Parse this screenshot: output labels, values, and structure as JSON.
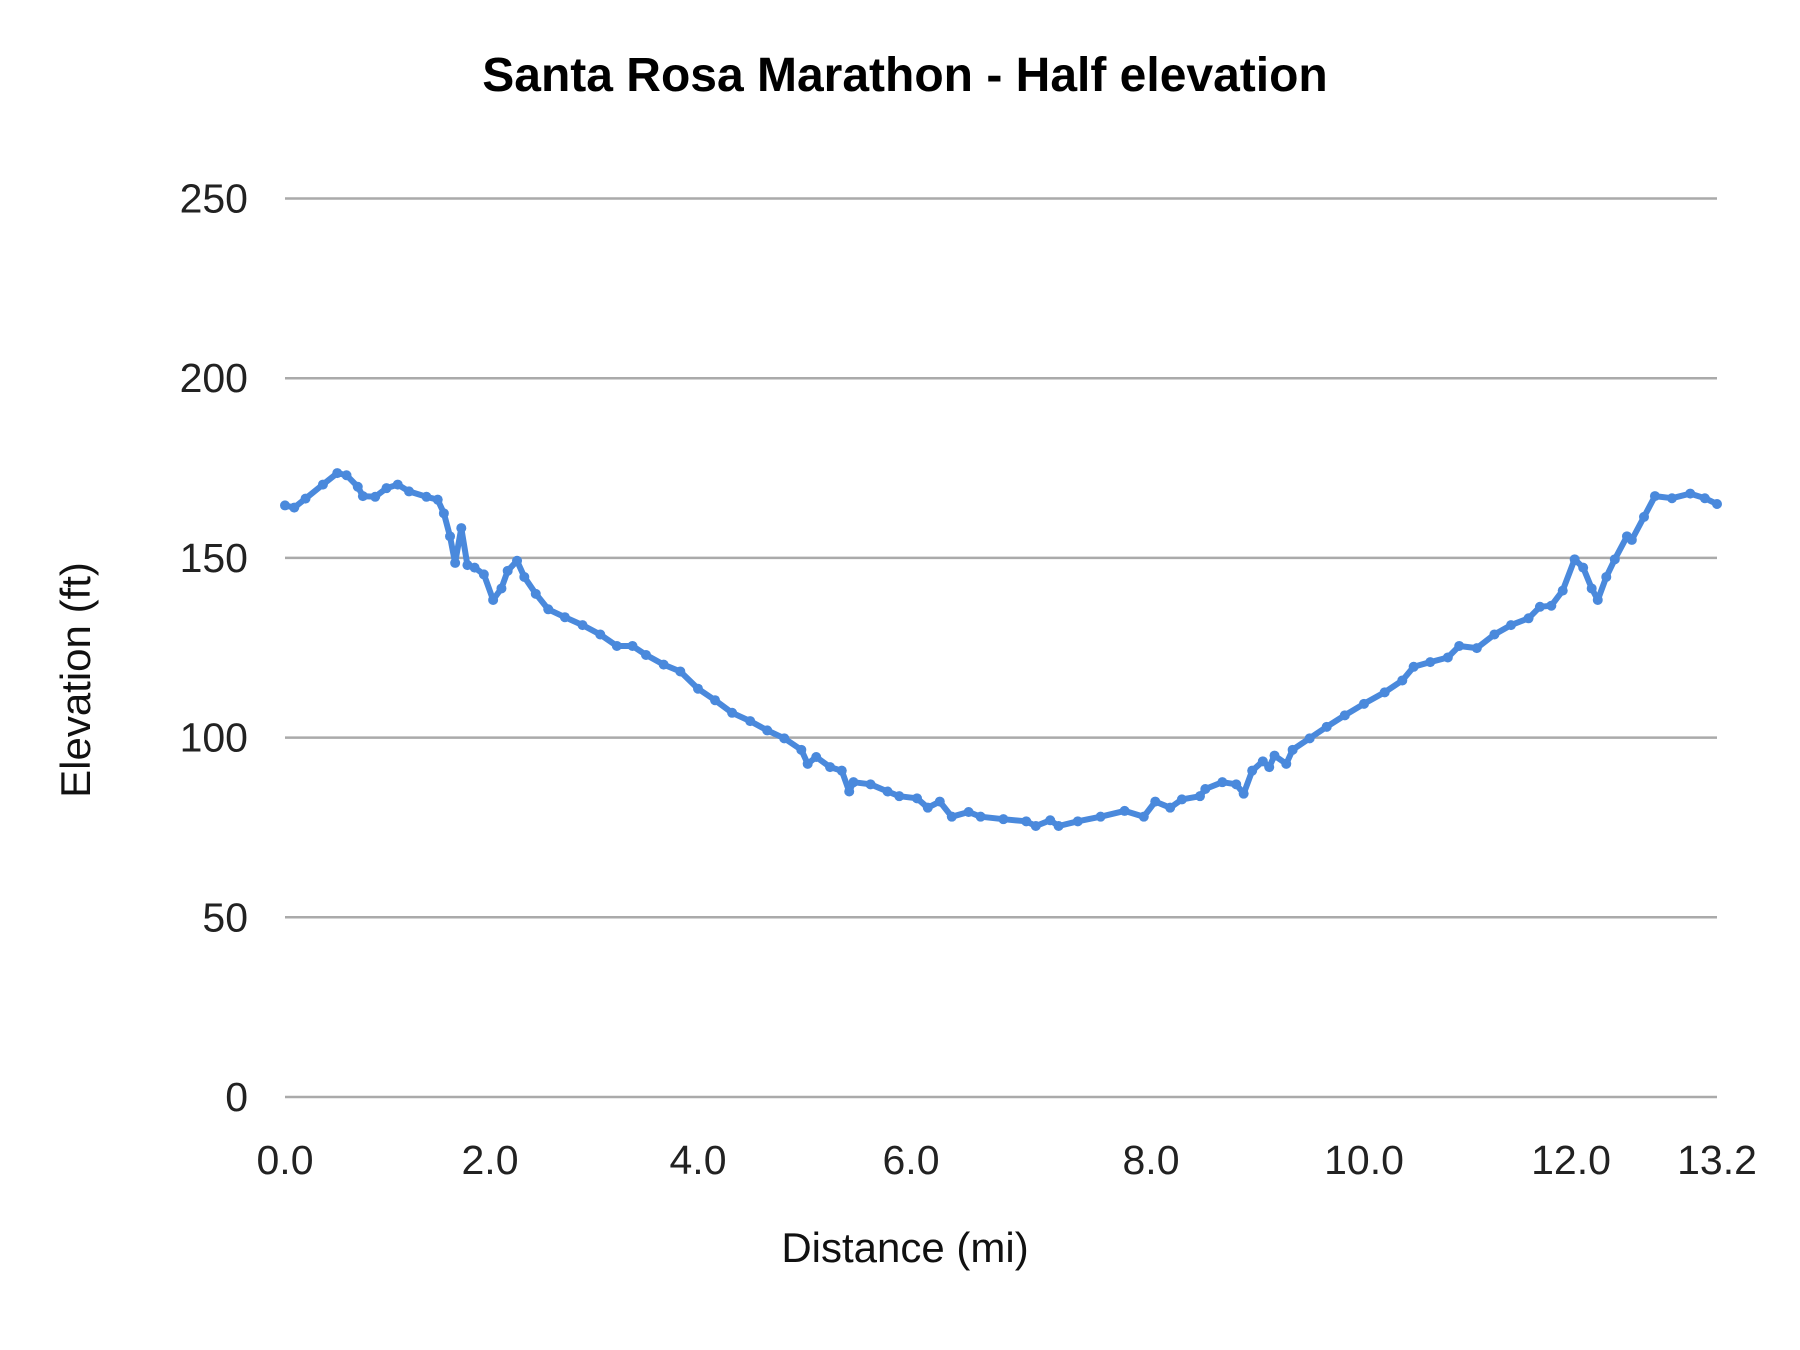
{
  "chart_data": {
    "type": "line",
    "title": "Santa Rosa Marathon - Half elevation",
    "xlabel": "Distance (mi)",
    "ylabel": "Elevation (ft)",
    "x_tick_labels": [
      "0.0",
      "2.0",
      "4.0",
      "6.0",
      "8.0",
      "10.0",
      "12.0",
      "13.2"
    ],
    "y_tick_labels": [
      "0",
      "50",
      "100",
      "150",
      "200",
      "250"
    ],
    "ylim": [
      0,
      250
    ],
    "xlim": [
      0,
      13.2
    ],
    "grid": "horizontal",
    "legend": "none",
    "color": "#4a89dc",
    "series": [
      {
        "points": [
          [
            0,
            164.6
          ],
          [
            0.09,
            164
          ],
          [
            0.2,
            166.5
          ],
          [
            0.37,
            170.4
          ],
          [
            0.51,
            173.6
          ],
          [
            0.6,
            173
          ],
          [
            0.71,
            169.8
          ],
          [
            0.76,
            167.2
          ],
          [
            0.88,
            167
          ],
          [
            0.99,
            169.4
          ],
          [
            1.1,
            170.4
          ],
          [
            1.21,
            168.5
          ],
          [
            1.38,
            167
          ],
          [
            1.49,
            166.2
          ],
          [
            1.55,
            162.4
          ],
          [
            1.61,
            156
          ],
          [
            1.66,
            148.6
          ],
          [
            1.72,
            158.3
          ],
          [
            1.78,
            148
          ],
          [
            1.85,
            147.3
          ],
          [
            1.94,
            145.4
          ],
          [
            2.03,
            138.3
          ],
          [
            2.11,
            141.5
          ],
          [
            2.17,
            146.4
          ],
          [
            2.26,
            149.2
          ],
          [
            2.33,
            144.7
          ],
          [
            2.44,
            140
          ],
          [
            2.56,
            135.7
          ],
          [
            2.72,
            133.5
          ],
          [
            2.89,
            131.3
          ],
          [
            3.06,
            128.7
          ],
          [
            3.22,
            125.5
          ],
          [
            3.37,
            125.5
          ],
          [
            3.5,
            123
          ],
          [
            3.67,
            120.3
          ],
          [
            3.83,
            118.4
          ],
          [
            4.0,
            113.6
          ],
          [
            4.16,
            110.4
          ],
          [
            4.32,
            106.9
          ],
          [
            4.49,
            104.6
          ],
          [
            4.65,
            102
          ],
          [
            4.81,
            99.8
          ],
          [
            4.97,
            96.6
          ],
          [
            5.03,
            92.7
          ],
          [
            5.11,
            94.6
          ],
          [
            5.24,
            91.8
          ],
          [
            5.35,
            90.8
          ],
          [
            5.42,
            85
          ],
          [
            5.46,
            87.6
          ],
          [
            5.62,
            87
          ],
          [
            5.78,
            85
          ],
          [
            5.89,
            83.7
          ],
          [
            6.05,
            83.1
          ],
          [
            6.14,
            80.5
          ],
          [
            6.24,
            82.2
          ],
          [
            6.34,
            78
          ],
          [
            6.48,
            79.3
          ],
          [
            6.58,
            78
          ],
          [
            6.77,
            77.3
          ],
          [
            6.96,
            76.7
          ],
          [
            7.04,
            75.4
          ],
          [
            7.16,
            77
          ],
          [
            7.23,
            75.4
          ],
          [
            7.39,
            76.7
          ],
          [
            7.58,
            78
          ],
          [
            7.78,
            79.6
          ],
          [
            7.94,
            78
          ],
          [
            8.04,
            82.2
          ],
          [
            8.18,
            80.5
          ],
          [
            8.29,
            82.8
          ],
          [
            8.46,
            83.7
          ],
          [
            8.51,
            85.7
          ],
          [
            8.67,
            87.6
          ],
          [
            8.8,
            87
          ],
          [
            8.87,
            84.4
          ],
          [
            8.95,
            90.8
          ],
          [
            9.05,
            93.4
          ],
          [
            9.11,
            91.8
          ],
          [
            9.16,
            95
          ],
          [
            9.27,
            92.7
          ],
          [
            9.33,
            96.6
          ],
          [
            9.49,
            99.8
          ],
          [
            9.65,
            103
          ],
          [
            9.82,
            106.2
          ],
          [
            10.0,
            109.4
          ],
          [
            10.2,
            112.6
          ],
          [
            10.37,
            115.9
          ],
          [
            10.48,
            119.7
          ],
          [
            10.64,
            121
          ],
          [
            10.81,
            122.3
          ],
          [
            10.92,
            125.5
          ],
          [
            11.09,
            124.9
          ],
          [
            11.26,
            128.7
          ],
          [
            11.42,
            131.3
          ],
          [
            11.59,
            133.2
          ],
          [
            11.7,
            136.4
          ],
          [
            11.81,
            136.7
          ],
          [
            11.92,
            140.9
          ],
          [
            12.03,
            149.6
          ],
          [
            12.1,
            147.3
          ],
          [
            12.17,
            141.5
          ],
          [
            12.22,
            138.3
          ],
          [
            12.29,
            144.7
          ],
          [
            12.36,
            149.6
          ],
          [
            12.46,
            156
          ],
          [
            12.5,
            155
          ],
          [
            12.6,
            161.4
          ],
          [
            12.69,
            167.2
          ],
          [
            12.83,
            166.6
          ],
          [
            12.98,
            167.9
          ],
          [
            13.1,
            166.6
          ],
          [
            13.2,
            165
          ]
        ]
      }
    ]
  }
}
